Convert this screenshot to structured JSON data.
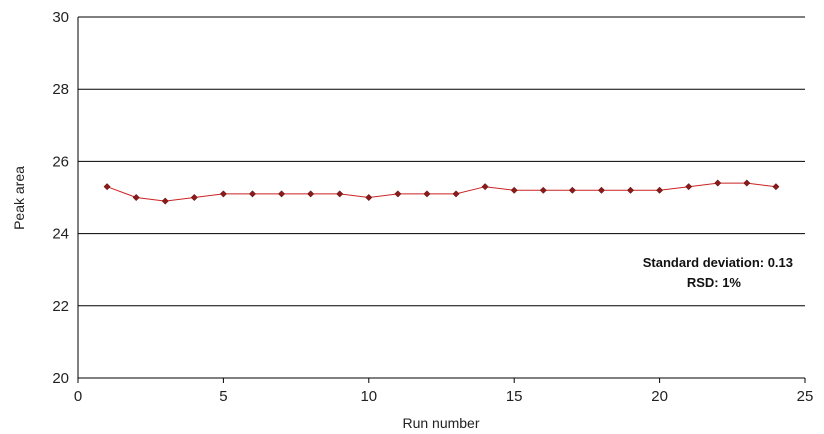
{
  "chart_data": {
    "type": "line",
    "title": "",
    "xlabel": "Run number",
    "ylabel": "Peak area",
    "xlim": [
      0,
      25
    ],
    "ylim": [
      20,
      30
    ],
    "x_ticks": [
      0,
      5,
      10,
      15,
      20,
      25
    ],
    "y_ticks": [
      20,
      22,
      24,
      26,
      28,
      30
    ],
    "grid": "horizontal",
    "series": [
      {
        "color": "#cc2222",
        "marker_color": "#8b1a1a",
        "x": [
          1,
          2,
          3,
          4,
          5,
          6,
          7,
          8,
          9,
          10,
          11,
          12,
          13,
          14,
          15,
          16,
          17,
          18,
          19,
          20,
          21,
          22,
          23,
          24
        ],
        "y": [
          25.3,
          25.0,
          24.9,
          25.0,
          25.1,
          25.1,
          25.1,
          25.1,
          25.1,
          25.0,
          25.1,
          25.1,
          25.1,
          25.3,
          25.2,
          25.2,
          25.2,
          25.2,
          25.2,
          25.2,
          25.3,
          25.4,
          25.4,
          25.3
        ]
      }
    ],
    "annotations": [
      "Standard deviation: 0.13",
      "RSD: 1%"
    ]
  }
}
